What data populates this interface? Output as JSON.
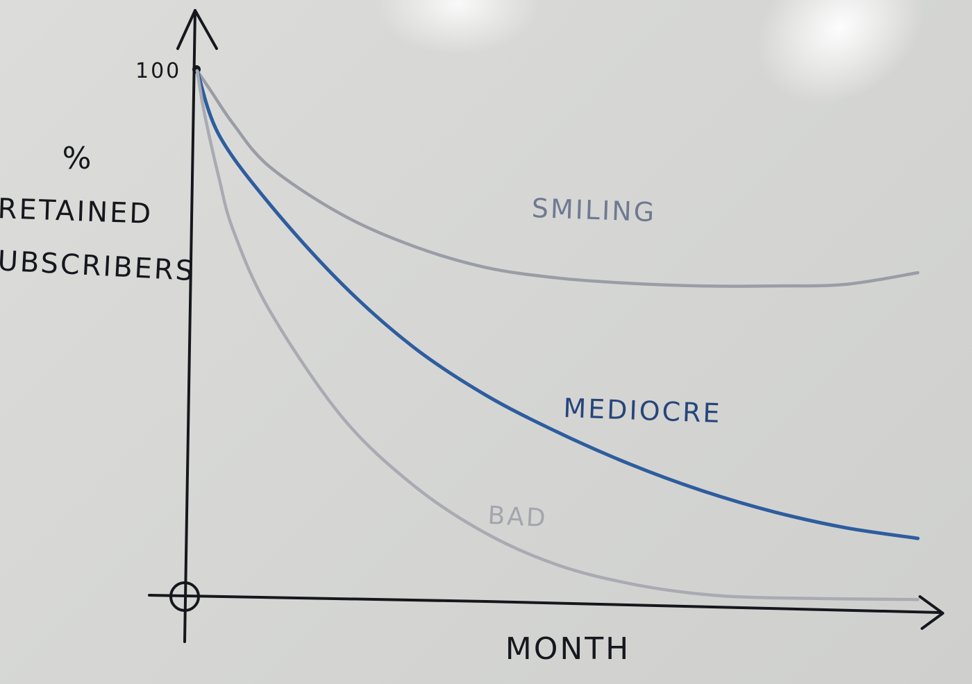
{
  "chart_data": {
    "type": "line",
    "title": "",
    "xlabel": "MONTH",
    "ylabel_lines": [
      "%",
      "RETAINED",
      "SUBSCRIBERS"
    ],
    "y_tick_labels": [
      "100"
    ],
    "origin_label": "O",
    "ylim": [
      0,
      100
    ],
    "xlim": [
      0,
      100
    ],
    "grid": false,
    "legend": "inline labels next to each curve",
    "series": [
      {
        "name": "SMILING",
        "color": "#9a9ca6",
        "label_color": "#6f7a91",
        "points": [
          [
            0,
            100
          ],
          [
            2,
            96
          ],
          [
            5,
            90
          ],
          [
            10,
            82
          ],
          [
            20,
            73
          ],
          [
            30,
            67
          ],
          [
            40,
            63
          ],
          [
            50,
            61
          ],
          [
            60,
            60
          ],
          [
            70,
            59.5
          ],
          [
            80,
            59.5
          ],
          [
            90,
            59.8
          ],
          [
            100,
            62
          ]
        ]
      },
      {
        "name": "MEDIOCRE",
        "color": "#2e5d9e",
        "label_color": "#27457a",
        "points": [
          [
            0,
            100
          ],
          [
            3,
            88
          ],
          [
            10,
            75
          ],
          [
            20,
            60
          ],
          [
            30,
            48
          ],
          [
            40,
            39
          ],
          [
            50,
            32
          ],
          [
            60,
            26
          ],
          [
            70,
            21
          ],
          [
            80,
            17
          ],
          [
            90,
            14
          ],
          [
            100,
            12
          ]
        ]
      },
      {
        "name": "BAD",
        "color": "#a9aab2",
        "label_color": "#a4a5ad",
        "points": [
          [
            0,
            100
          ],
          [
            1,
            92
          ],
          [
            3,
            80
          ],
          [
            5,
            70
          ],
          [
            10,
            55
          ],
          [
            20,
            35
          ],
          [
            30,
            22
          ],
          [
            40,
            13
          ],
          [
            50,
            7
          ],
          [
            60,
            3.5
          ],
          [
            70,
            1.5
          ],
          [
            80,
            0.8
          ],
          [
            100,
            0.5
          ]
        ]
      }
    ]
  }
}
